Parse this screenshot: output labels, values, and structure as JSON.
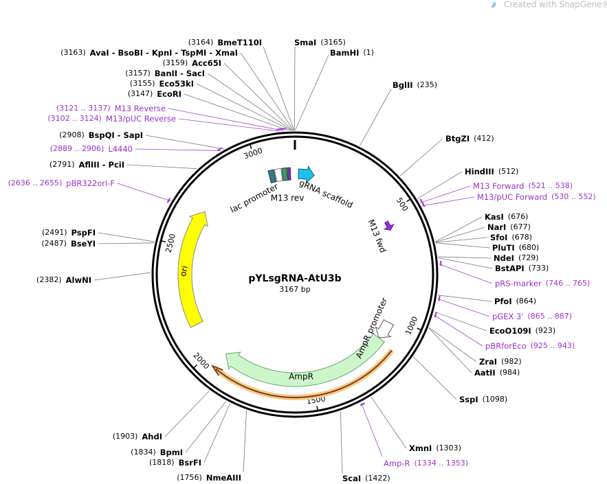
{
  "watermark": "Created with SnapGene®",
  "plasmid": {
    "name": "pYLsgRNA-AtU3b",
    "length": "3167 bp"
  },
  "scale_labels": [
    "500",
    "1000",
    "1500",
    "2000",
    "2500",
    "3000"
  ],
  "features": [
    "lac promoter",
    "M13 rev",
    "gRNA scaffold",
    "M13 fwd",
    "ori",
    "AmpR",
    "AmpR promoter"
  ],
  "sites": [
    {
      "name": "BmeT110I",
      "position": "(3164)"
    },
    {
      "name": "AvaI  -  BsoBI  -  KpnI  -  TspMI  -  XmaI",
      "position": "(3163)"
    },
    {
      "name": "Acc65I",
      "position": "(3159)"
    },
    {
      "name": "BanII  -  SacI",
      "position": "(3157)"
    },
    {
      "name": "Eco53kI",
      "position": "(3155)"
    },
    {
      "name": "EcoRI",
      "position": "(3147)"
    },
    {
      "name": "BspQI  -  SapI",
      "position": "(2908)"
    },
    {
      "name": "AflIII  -  PciI",
      "position": "(2791)"
    },
    {
      "name": "PspFI",
      "position": "(2491)"
    },
    {
      "name": "BseYI",
      "position": "(2487)"
    },
    {
      "name": "AlwNI",
      "position": "(2382)"
    },
    {
      "name": "AhdI",
      "position": "(1903)"
    },
    {
      "name": "BpmI",
      "position": "(1834)"
    },
    {
      "name": "BsrFI",
      "position": "(1818)"
    },
    {
      "name": "NmeAIII",
      "position": "(1756)"
    },
    {
      "name": "SmaI",
      "position": "(3165)"
    },
    {
      "name": "BamHI",
      "position": "(1)"
    },
    {
      "name": "BglII",
      "position": "(235)"
    },
    {
      "name": "BtgZI",
      "position": "(412)"
    },
    {
      "name": "HindIII",
      "position": "(512)"
    },
    {
      "name": "KasI",
      "position": "(676)"
    },
    {
      "name": "NarI",
      "position": "(677)"
    },
    {
      "name": "SfoI",
      "position": "(678)"
    },
    {
      "name": "PluTI",
      "position": "(680)"
    },
    {
      "name": "NdeI",
      "position": "(729)"
    },
    {
      "name": "BstAPI",
      "position": "(733)"
    },
    {
      "name": "PfoI",
      "position": "(864)"
    },
    {
      "name": "EcoO109I",
      "position": "(923)"
    },
    {
      "name": "ZraI",
      "position": "(982)"
    },
    {
      "name": "AatII",
      "position": "(984)"
    },
    {
      "name": "SspI",
      "position": "(1098)"
    },
    {
      "name": "XmnI",
      "position": "(1303)"
    },
    {
      "name": "ScaI",
      "position": "(1422)"
    }
  ],
  "primers": [
    {
      "name": "M13 Reverse",
      "range": "(3121 .. 3137)"
    },
    {
      "name": "M13/pUC Reverse",
      "range": "(3102 .. 3124)"
    },
    {
      "name": "L4440",
      "range": "(2889 .. 2906)"
    },
    {
      "name": "pBR322ori-F",
      "range": "(2636 .. 2655)"
    },
    {
      "name": "M13 Forward",
      "range": "(521 .. 538)"
    },
    {
      "name": "M13/pUC Forward",
      "range": "(530 .. 552)"
    },
    {
      "name": "pRS-marker",
      "range": "(746 .. 765)"
    },
    {
      "name": "pGEX 3'",
      "range": "(865 .. 887)"
    },
    {
      "name": "pBRforEco",
      "range": "(925 .. 943)"
    },
    {
      "name": "Amp-R",
      "range": "(1334 .. 1353)"
    }
  ]
}
